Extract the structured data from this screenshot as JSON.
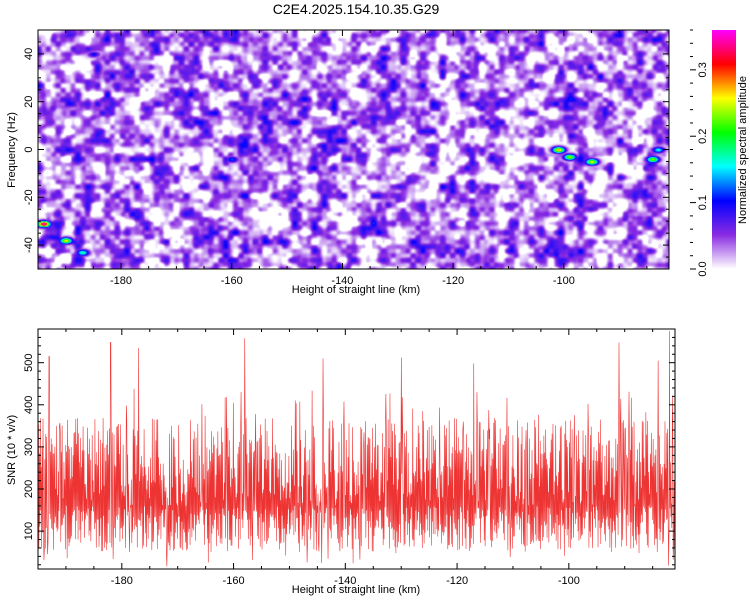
{
  "title": "C2E4.2025.154.10.35.G29",
  "chart_data": [
    {
      "type": "heatmap",
      "xlabel": "Height of straight line (km)",
      "ylabel": "Frequency (Hz)",
      "xlim": [
        -195,
        -81
      ],
      "ylim": [
        -50,
        50
      ],
      "xticks": [
        -180,
        -160,
        -140,
        -120,
        -100
      ],
      "yticks": [
        -40,
        -20,
        0,
        20,
        40
      ],
      "colorbar": {
        "label": "Normalized spectral amplitude",
        "range": [
          0,
          0.36
        ],
        "ticks": [
          0.0,
          0.1,
          0.2,
          0.3
        ],
        "colormap": [
          "#ffffff",
          "#8a2be2",
          "#0000ff",
          "#00ffff",
          "#00ff00",
          "#ffff00",
          "#ff0000",
          "#ff00ff"
        ]
      },
      "background_level": 0.05,
      "peaks": [
        {
          "x": -194,
          "y": -31,
          "v": 0.36
        },
        {
          "x": -190,
          "y": -38,
          "v": 0.26
        },
        {
          "x": -187,
          "y": -43,
          "v": 0.18
        },
        {
          "x": -101,
          "y": 0,
          "v": 0.28
        },
        {
          "x": -99,
          "y": -3,
          "v": 0.24
        },
        {
          "x": -95,
          "y": -5,
          "v": 0.26
        },
        {
          "x": -84,
          "y": -4,
          "v": 0.24
        },
        {
          "x": -83,
          "y": 0,
          "v": 0.16
        },
        {
          "x": -160,
          "y": -4,
          "v": 0.12
        },
        {
          "x": -185,
          "y": 40,
          "v": 0.1
        }
      ]
    },
    {
      "type": "line",
      "xlabel": "Height of straight line (km)",
      "ylabel": "SNR (10 * v/v)",
      "xlim": [
        -195,
        -81
      ],
      "ylim": [
        10,
        580
      ],
      "xticks": [
        -180,
        -160,
        -140,
        -120,
        -100
      ],
      "yticks": [
        100,
        200,
        300,
        400,
        500
      ],
      "color": "#ee3333",
      "samples": 1400,
      "typical_range": [
        80,
        330
      ],
      "spikes": [
        {
          "x": -193,
          "y": 515
        },
        {
          "x": -182,
          "y": 548
        },
        {
          "x": -177,
          "y": 535
        },
        {
          "x": -158,
          "y": 558
        },
        {
          "x": -144,
          "y": 510
        },
        {
          "x": -130,
          "y": 512
        },
        {
          "x": -117,
          "y": 498
        },
        {
          "x": -91,
          "y": 548
        },
        {
          "x": -82,
          "y": 575
        },
        {
          "x": -84,
          "y": 505
        }
      ]
    }
  ]
}
